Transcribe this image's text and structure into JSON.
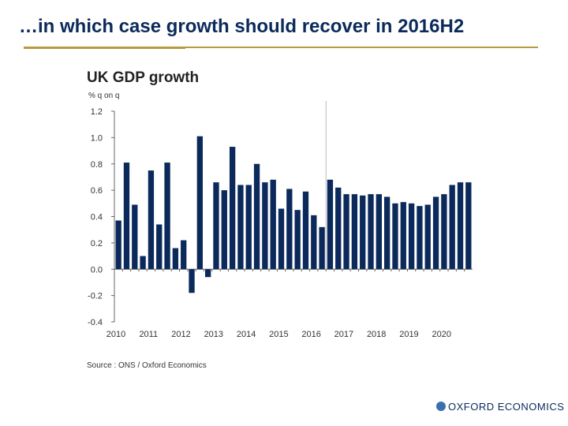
{
  "slide": {
    "title": "…in which case growth should recover in 2016H2",
    "source": "Source : ONS / Oxford Economics",
    "logo": "OXFORD ECONOMICS"
  },
  "chart_data": {
    "type": "bar",
    "title": "UK GDP growth",
    "ylabel": "% q on q",
    "ylim": [
      -0.4,
      1.2
    ],
    "yticks": [
      "1.2",
      "1.0",
      "0.8",
      "0.6",
      "0.4",
      "0.2",
      "0.0",
      "-0.2",
      "-0.4"
    ],
    "xtick_labels": [
      "2010",
      "2011",
      "2012",
      "2013",
      "2014",
      "2015",
      "2016",
      "2017",
      "2018",
      "2019",
      "2020"
    ],
    "forecast_start": "2016 Q3",
    "bar_color": "#0b2a5b",
    "grid": false,
    "values": [
      0.37,
      0.81,
      0.49,
      0.1,
      0.75,
      0.34,
      0.81,
      0.16,
      0.22,
      -0.18,
      1.01,
      -0.06,
      0.66,
      0.6,
      0.93,
      0.64,
      0.64,
      0.8,
      0.66,
      0.68,
      0.46,
      0.61,
      0.45,
      0.59,
      0.41,
      0.32,
      0.68,
      0.62,
      0.57,
      0.57,
      0.56,
      0.57,
      0.57,
      0.55,
      0.5,
      0.51,
      0.5,
      0.48,
      0.49,
      0.55,
      0.57,
      0.64,
      0.66,
      0.66
    ]
  }
}
